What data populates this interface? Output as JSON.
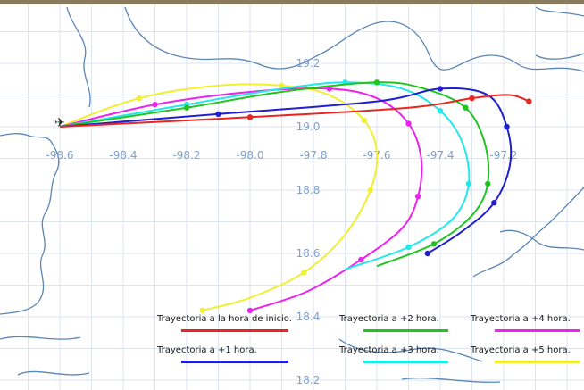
{
  "colors": {
    "frame": "#8a7a5e",
    "background": "#ffffff",
    "grid": "#dde6f0",
    "coastline": "#5a86b5",
    "axis_label": "#7f9fcf",
    "origin_marker": "#222222"
  },
  "axes": {
    "x_ticks": [
      {
        "value": -98.6,
        "label": "-98.6"
      },
      {
        "value": -98.4,
        "label": "-98.4"
      },
      {
        "value": -98.2,
        "label": "-98.2"
      },
      {
        "value": -98.0,
        "label": "-98.0"
      },
      {
        "value": -97.8,
        "label": "-97.8"
      },
      {
        "value": -97.6,
        "label": "-97.6"
      },
      {
        "value": -97.4,
        "label": "-97.4"
      },
      {
        "value": -97.2,
        "label": "-97.2"
      }
    ],
    "y_ticks": [
      {
        "value": 19.2,
        "label": "19.2"
      },
      {
        "value": 19.0,
        "label": "19.0"
      },
      {
        "value": 18.8,
        "label": "18.8"
      },
      {
        "value": 18.6,
        "label": "18.6"
      },
      {
        "value": 18.4,
        "label": "18.4"
      },
      {
        "value": 18.2,
        "label": "18.2"
      }
    ],
    "x_range": [
      -98.8,
      -97.1
    ],
    "y_range": [
      18.15,
      19.38
    ]
  },
  "origin": {
    "lon": -98.6,
    "lat": 19.0,
    "icon": "airplane-icon"
  },
  "legend": [
    {
      "label": "Trayectoria a la hora de inicio.",
      "color": "#e8251f"
    },
    {
      "label": "Trayectoria a +2 hora.",
      "color": "#22c422"
    },
    {
      "label": "Trayectoria a +4 hora.",
      "color": "#ee22ee"
    },
    {
      "label": "Trayectoria a +1 hora.",
      "color": "#1f1fd0"
    },
    {
      "label": "Trayectoria a +3 hora.",
      "color": "#22e8e8"
    },
    {
      "label": "Trayectoria a +5 hora.",
      "color": "#f2ee30"
    }
  ],
  "trajectories": [
    {
      "name": "Trayectoria a la hora de inicio.",
      "color": "#e8251f",
      "points": [
        [
          -98.6,
          19.0
        ],
        [
          -98.0,
          19.03
        ],
        [
          -97.5,
          19.06
        ],
        [
          -97.3,
          19.09
        ],
        [
          -97.18,
          19.1
        ],
        [
          -97.12,
          19.08
        ]
      ]
    },
    {
      "name": "Trayectoria a +1 hora.",
      "color": "#1f1fd0",
      "points": [
        [
          -98.6,
          19.0
        ],
        [
          -98.1,
          19.04
        ],
        [
          -97.6,
          19.08
        ],
        [
          -97.4,
          19.12
        ],
        [
          -97.25,
          19.1
        ],
        [
          -97.19,
          19.0
        ],
        [
          -97.18,
          18.88
        ],
        [
          -97.23,
          18.76
        ],
        [
          -97.33,
          18.67
        ],
        [
          -97.44,
          18.6
        ]
      ]
    },
    {
      "name": "Trayectoria a +2 hora.",
      "color": "#22c422",
      "points": [
        [
          -98.6,
          19.0
        ],
        [
          -98.2,
          19.06
        ],
        [
          -97.9,
          19.11
        ],
        [
          -97.6,
          19.14
        ],
        [
          -97.45,
          19.12
        ],
        [
          -97.32,
          19.06
        ],
        [
          -97.26,
          18.95
        ],
        [
          -97.25,
          18.82
        ],
        [
          -97.3,
          18.72
        ],
        [
          -97.42,
          18.63
        ],
        [
          -97.6,
          18.56
        ]
      ]
    },
    {
      "name": "Trayectoria a +3 hora.",
      "color": "#22e8e8",
      "points": [
        [
          -98.6,
          19.0
        ],
        [
          -98.2,
          19.07
        ],
        [
          -97.9,
          19.12
        ],
        [
          -97.7,
          19.14
        ],
        [
          -97.52,
          19.12
        ],
        [
          -97.4,
          19.05
        ],
        [
          -97.33,
          18.95
        ],
        [
          -97.31,
          18.82
        ],
        [
          -97.36,
          18.71
        ],
        [
          -97.5,
          18.62
        ],
        [
          -97.7,
          18.55
        ]
      ]
    },
    {
      "name": "Trayectoria a +4 hora.",
      "color": "#ee22ee",
      "points": [
        [
          -98.6,
          19.0
        ],
        [
          -98.3,
          19.07
        ],
        [
          -98.0,
          19.11
        ],
        [
          -97.75,
          19.12
        ],
        [
          -97.6,
          19.09
        ],
        [
          -97.5,
          19.01
        ],
        [
          -97.46,
          18.9
        ],
        [
          -97.47,
          18.78
        ],
        [
          -97.52,
          18.68
        ],
        [
          -97.65,
          18.58
        ],
        [
          -97.82,
          18.48
        ],
        [
          -98.0,
          18.42
        ]
      ]
    },
    {
      "name": "Trayectoria a +5 hora.",
      "color": "#f2ee30",
      "points": [
        [
          -98.6,
          19.0
        ],
        [
          -98.35,
          19.09
        ],
        [
          -98.1,
          19.13
        ],
        [
          -97.9,
          19.13
        ],
        [
          -97.75,
          19.1
        ],
        [
          -97.64,
          19.02
        ],
        [
          -97.6,
          18.92
        ],
        [
          -97.62,
          18.8
        ],
        [
          -97.7,
          18.66
        ],
        [
          -97.83,
          18.54
        ],
        [
          -98.0,
          18.46
        ],
        [
          -98.15,
          18.42
        ]
      ]
    }
  ]
}
